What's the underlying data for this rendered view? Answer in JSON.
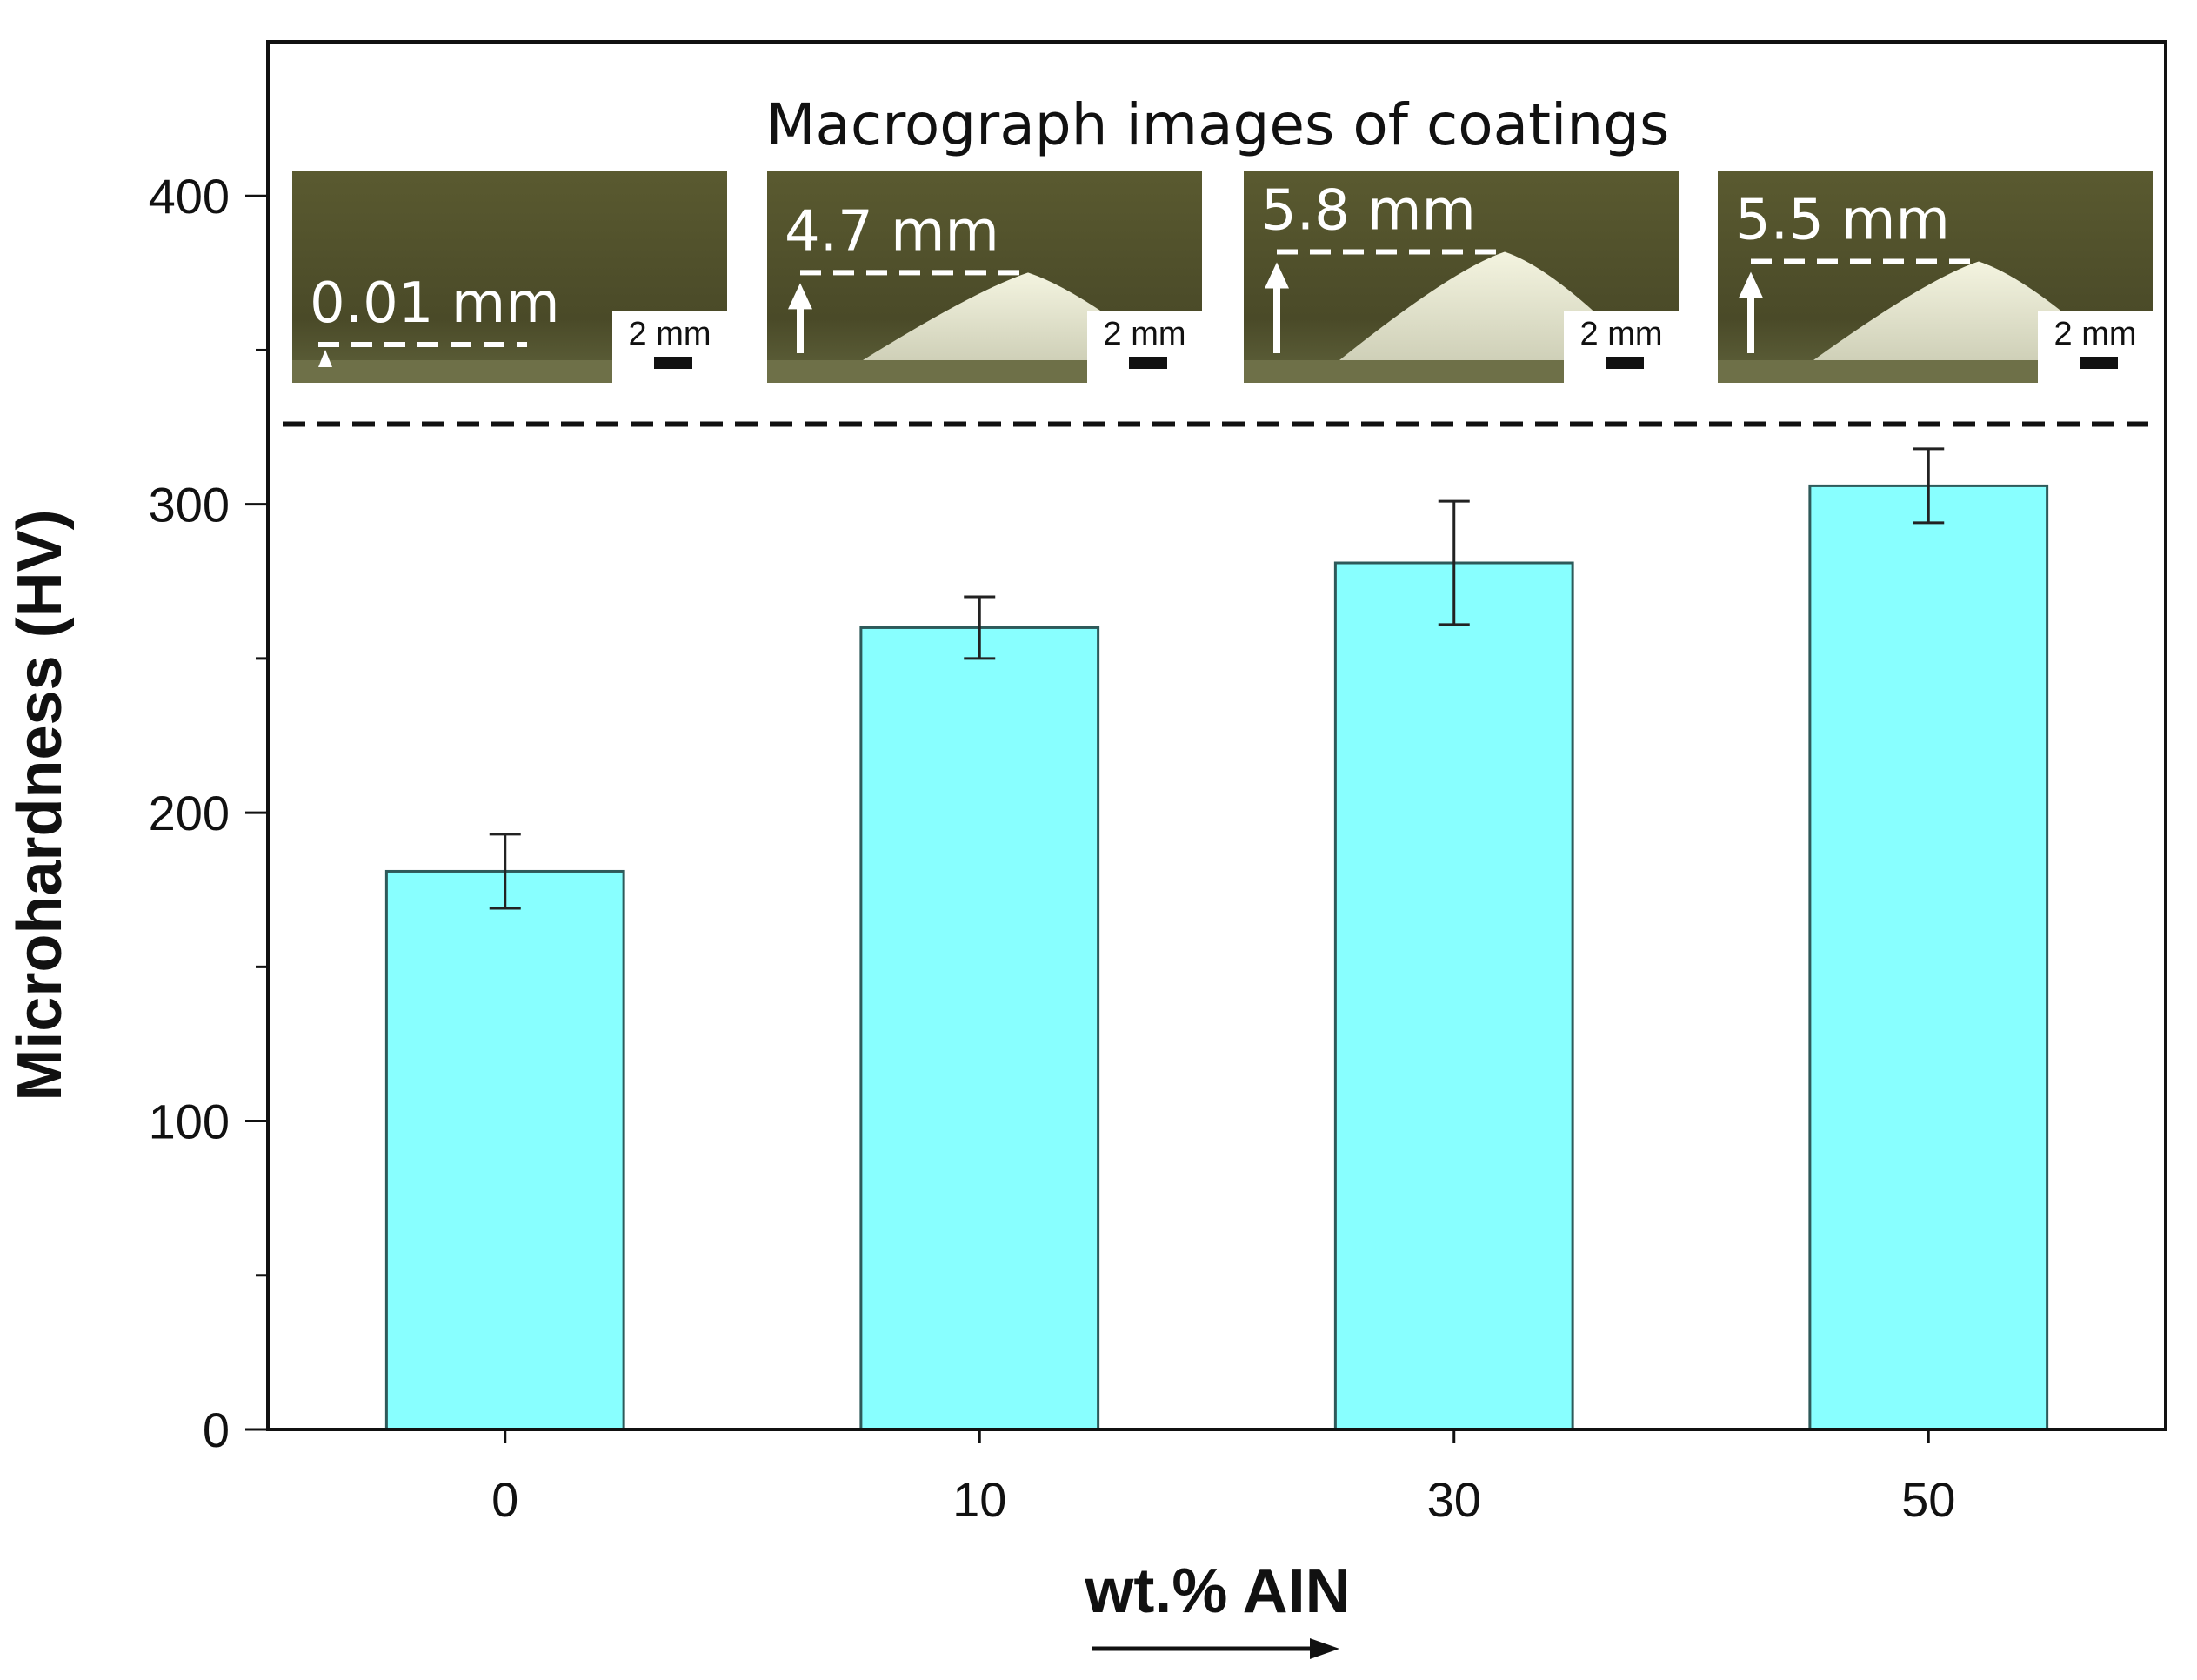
{
  "chart_data": {
    "type": "bar",
    "categories": [
      "0",
      "10",
      "30",
      "50"
    ],
    "values": [
      181,
      260,
      281,
      306
    ],
    "errors": [
      12,
      10,
      20,
      12
    ],
    "bar_color": "#88ffff",
    "bar_edge_color": "#2e5a5a",
    "ylabel": "Microhardness (HV)",
    "xlabel": "wt.% AIN",
    "ylim": [
      0,
      450
    ],
    "yticks": [
      0,
      100,
      200,
      300,
      400
    ],
    "yticklabels": [
      "0",
      "100",
      "200",
      "300",
      "400"
    ],
    "minor_yticks": [
      50,
      150,
      250,
      350
    ],
    "grid": false,
    "divider_value": 326
  },
  "inset": {
    "title": "Macrograph images of coatings",
    "images": [
      {
        "height_label": "0.01 mm",
        "scale_label": "2 mm",
        "height_fraction": 0.0
      },
      {
        "height_label": "4.7 mm",
        "scale_label": "2 mm",
        "height_fraction": 0.55
      },
      {
        "height_label": "5.8 mm",
        "scale_label": "2 mm",
        "height_fraction": 0.68
      },
      {
        "height_label": "5.5 mm",
        "scale_label": "2 mm",
        "height_fraction": 0.62
      }
    ]
  }
}
